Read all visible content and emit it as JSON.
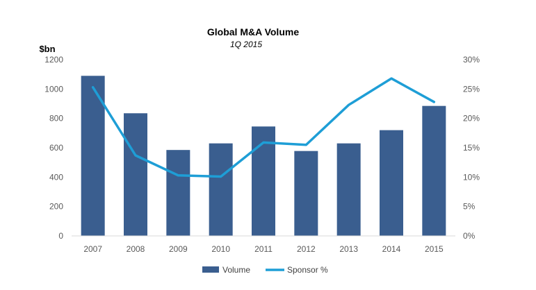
{
  "chart_data": {
    "type": "bar",
    "title": "Global M&A Volume",
    "subtitle": "1Q 2015",
    "ylabel": "$bn",
    "y2label": "",
    "categories": [
      "2007",
      "2008",
      "2009",
      "2010",
      "2011",
      "2012",
      "2013",
      "2014",
      "2015"
    ],
    "series": [
      {
        "name": "Volume",
        "type": "bar",
        "axis": "left",
        "color": "#3A5E8F",
        "values": [
          1090,
          835,
          585,
          630,
          745,
          578,
          630,
          720,
          885
        ]
      },
      {
        "name": "Sponsor %",
        "type": "line",
        "axis": "right",
        "color": "#1E9ED6",
        "values": [
          25.3,
          13.7,
          10.3,
          10.1,
          15.9,
          15.5,
          22.3,
          26.8,
          22.8
        ]
      }
    ],
    "ylim": [
      0,
      1200
    ],
    "y_ticks": [
      0,
      200,
      400,
      600,
      800,
      1000,
      1200
    ],
    "y_tick_labels": [
      "0",
      "200",
      "400",
      "600",
      "800",
      "1000",
      "1200"
    ],
    "y2lim": [
      0,
      30
    ],
    "y2_ticks": [
      0,
      5,
      10,
      15,
      20,
      25,
      30
    ],
    "y2_tick_labels": [
      "0%",
      "5%",
      "10%",
      "15%",
      "20%",
      "25%",
      "30%"
    ],
    "grid": false,
    "legend_position": "bottom-center"
  }
}
